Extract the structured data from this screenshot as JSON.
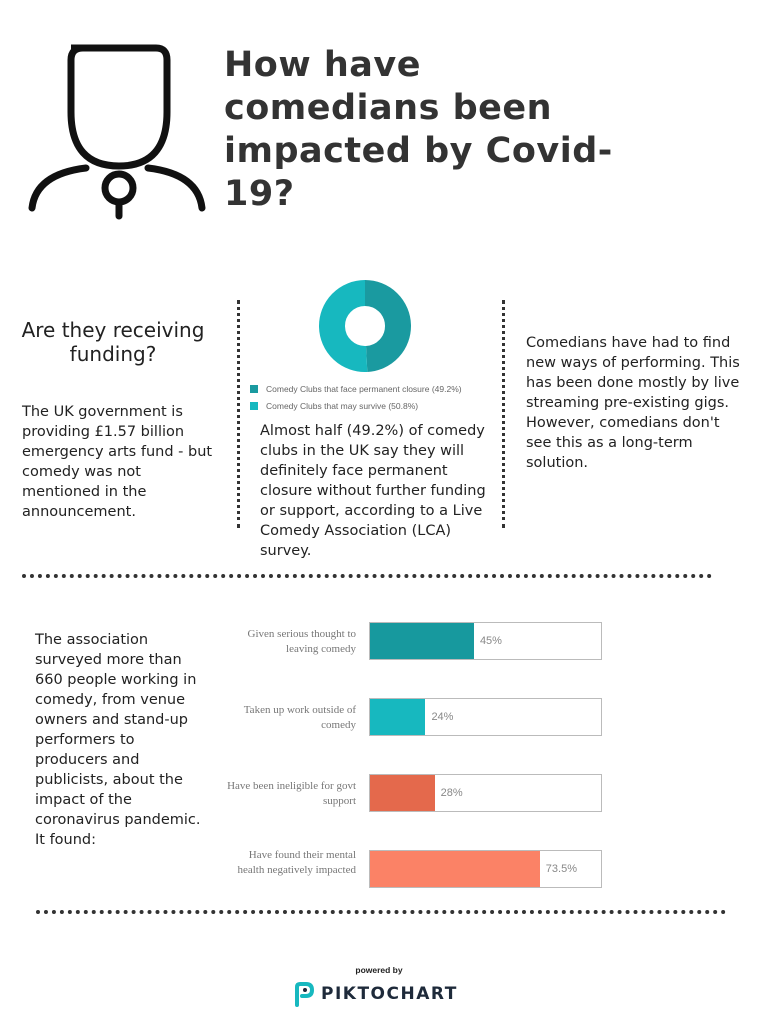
{
  "title": "How have comedians been impacted by Covid-19?",
  "funding": {
    "heading": "Are they receiving funding?",
    "text": "The UK government is providing £1.57 billion emergency arts fund - but comedy was not mentioned in the announcement."
  },
  "closure": {
    "text": "Almost half (49.2%) of comedy clubs in the UK say they will definitely face permanent closure without further funding or support, according to a Live Comedy Association (LCA) survey."
  },
  "performing": {
    "text": "Comedians have had to find new ways of performing. This has been done mostly by live streaming pre-existing gigs.\nHowever, comedians don't see this as a long-term solution."
  },
  "survey": {
    "text": "The association surveyed more than 660 people working in comedy, from venue owners and stand-up performers to producers and publicists, about the impact of the coronavirus pandemic. It found:"
  },
  "chart_data": [
    {
      "type": "pie",
      "donut": true,
      "categories": [
        "Comedy Clubs that face permanent closure (49.2%)",
        "Comedy Clubs that may survive (50.8%)"
      ],
      "values": [
        49.2,
        50.8
      ],
      "colors": [
        "#1a9aa0",
        "#17b8bf"
      ],
      "legend": "bottom"
    },
    {
      "type": "bar",
      "orientation": "horizontal",
      "categories": [
        "Given serious thought to leaving comedy",
        "Taken up work outside of comedy",
        "Have been ineligible for govt support",
        "Have found their mental health negatively impacted"
      ],
      "values": [
        45,
        24,
        28,
        73.5
      ],
      "value_labels": [
        "45%",
        "24%",
        "28%",
        "73.5%"
      ],
      "colors": [
        "#17999e",
        "#17b8bf",
        "#e4694c",
        "#fb8266"
      ],
      "xlim": [
        0,
        100
      ]
    }
  ],
  "footer": {
    "powered_by": "powered by",
    "brand": "PIKTOCHART"
  }
}
